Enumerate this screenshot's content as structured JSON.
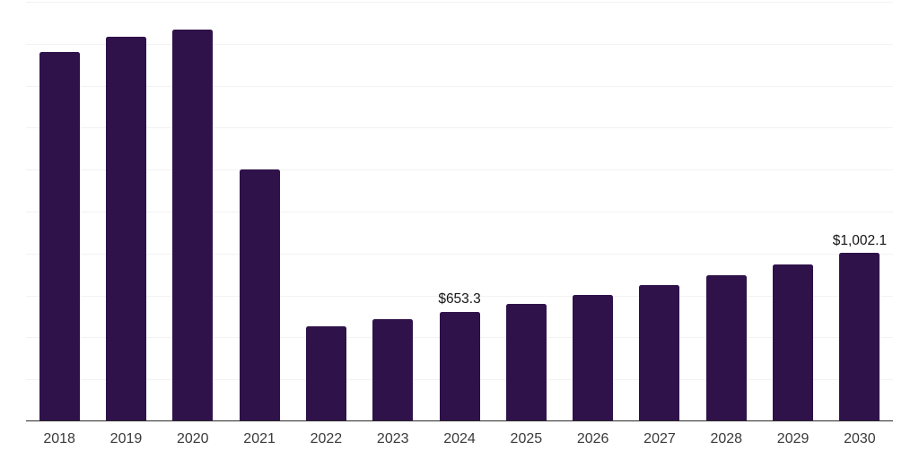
{
  "page": {
    "background_color": "#ffffff"
  },
  "chart_data": {
    "type": "bar",
    "title": "",
    "xlabel": "",
    "ylabel": "",
    "categories": [
      "2018",
      "2019",
      "2020",
      "2021",
      "2022",
      "2023",
      "2024",
      "2025",
      "2026",
      "2027",
      "2028",
      "2029",
      "2030"
    ],
    "series": [
      {
        "name": "value",
        "values": [
          2200,
          2292,
          2333,
          1500,
          567,
          610,
          653.3,
          698,
          752,
          814,
          872,
          935,
          1002.1
        ]
      }
    ],
    "data_labels": [
      {
        "index": 6,
        "category": "2024",
        "text": "$653.3"
      },
      {
        "index": 12,
        "category": "2030",
        "text": "$1,002.1"
      }
    ],
    "ylim": [
      0,
      2500
    ],
    "gridline_step": 250,
    "grid": "horizontal-only",
    "legend_position": "none",
    "y_tick_labels_visible": false,
    "colors": {
      "bar": "#30124a",
      "gridline": "#f2f2f2",
      "axis_line": "#2b2b2b",
      "tick_label": "#3a3a3a",
      "data_label": "#161616"
    }
  }
}
